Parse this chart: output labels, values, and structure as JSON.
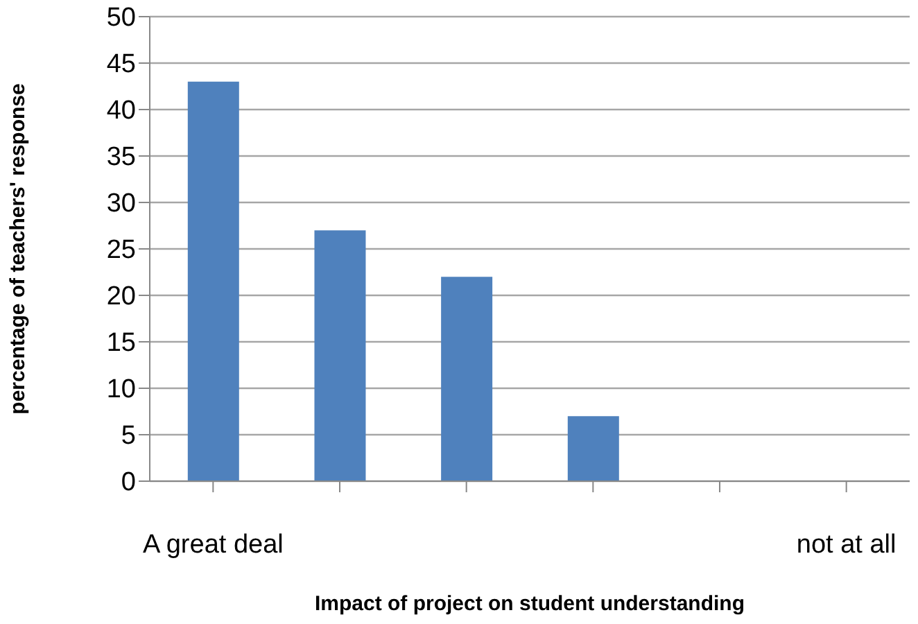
{
  "chart_data": {
    "type": "bar",
    "xlabel": "Impact of project on student understanding",
    "ylabel": "percentage of teachers' response",
    "categories": [
      "A great deal",
      null,
      null,
      null,
      null,
      "not at all"
    ],
    "values": [
      43,
      27,
      22,
      7,
      0,
      0
    ],
    "color": "#4f81bd",
    "ylim": [
      0,
      50
    ],
    "yticks": [
      0,
      5,
      10,
      15,
      20,
      25,
      30,
      35,
      40,
      45,
      50
    ],
    "grid": "y"
  }
}
